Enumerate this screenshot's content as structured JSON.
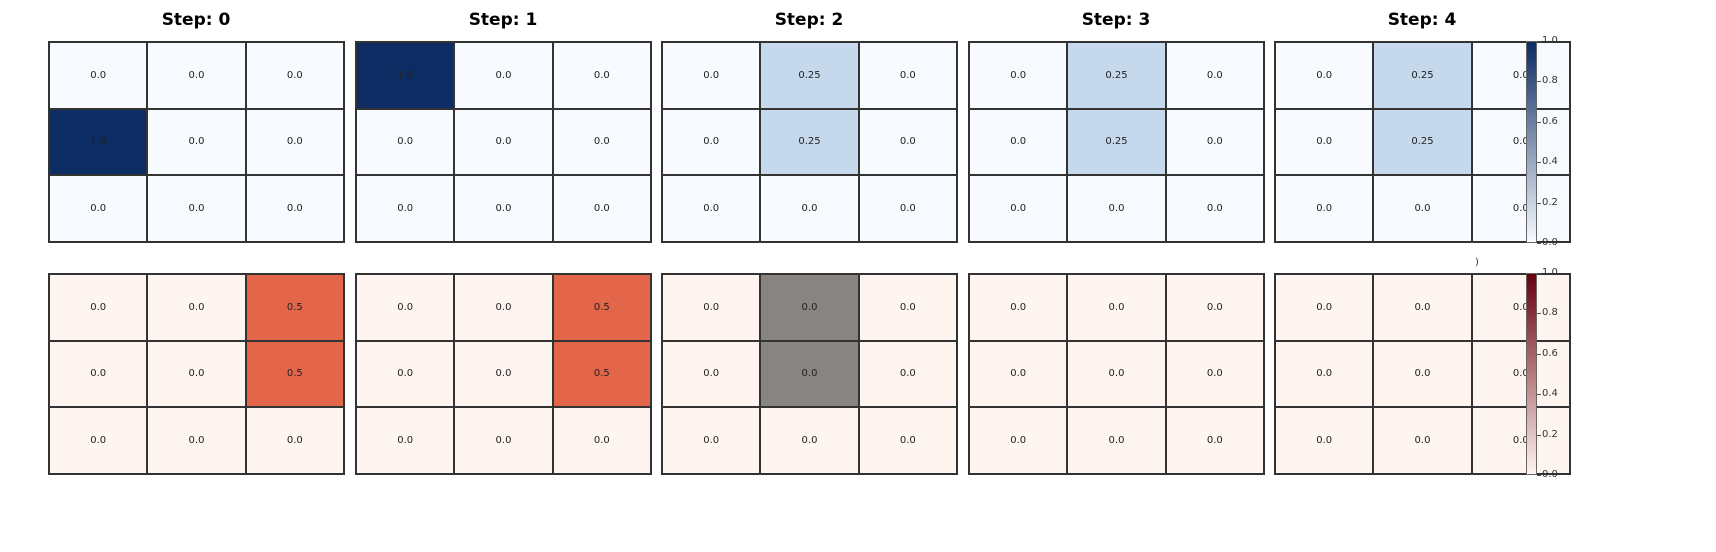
{
  "colors": {
    "top_low": "#f7fbff",
    "top_mid": "#c6d8ec",
    "top_high": "#0c2c63",
    "bottom_low": "#fff5f0",
    "bottom_mid": "#e3654a",
    "bottom_high": "#67000d",
    "masked": "#878481"
  },
  "chart_data": {
    "type": "heatmap",
    "steps": [
      {
        "title": "Step: 0",
        "top": [
          [
            "0.0",
            "0.0",
            "0.0"
          ],
          [
            "1.0",
            "0.0",
            "0.0"
          ],
          [
            "0.0",
            "0.0",
            "0.0"
          ]
        ],
        "bottom": [
          [
            "0.0",
            "0.0",
            "0.5"
          ],
          [
            "0.0",
            "0.0",
            "0.5"
          ],
          [
            "0.0",
            "0.0",
            "0.0"
          ]
        ]
      },
      {
        "title": "Step: 1",
        "top": [
          [
            "1.0",
            "0.0",
            "0.0"
          ],
          [
            "0.0",
            "0.0",
            "0.0"
          ],
          [
            "0.0",
            "0.0",
            "0.0"
          ]
        ],
        "bottom": [
          [
            "0.0",
            "0.0",
            "0.5"
          ],
          [
            "0.0",
            "0.0",
            "0.5"
          ],
          [
            "0.0",
            "0.0",
            "0.0"
          ]
        ]
      },
      {
        "title": "Step: 2",
        "top": [
          [
            "0.0",
            "0.25",
            "0.0"
          ],
          [
            "0.0",
            "0.25",
            "0.0"
          ],
          [
            "0.0",
            "0.0",
            "0.0"
          ]
        ],
        "bottom": [
          [
            "0.0",
            "0.0",
            "0.0"
          ],
          [
            "0.0",
            "0.0",
            "0.0"
          ],
          [
            "0.0",
            "0.0",
            "0.0"
          ]
        ],
        "bottom_masked": [
          [
            0,
            1
          ],
          [
            1,
            1
          ]
        ]
      },
      {
        "title": "Step: 3",
        "top": [
          [
            "0.0",
            "0.25",
            "0.0"
          ],
          [
            "0.0",
            "0.25",
            "0.0"
          ],
          [
            "0.0",
            "0.0",
            "0.0"
          ]
        ],
        "bottom": [
          [
            "0.0",
            "0.0",
            "0.0"
          ],
          [
            "0.0",
            "0.0",
            "0.0"
          ],
          [
            "0.0",
            "0.0",
            "0.0"
          ]
        ]
      },
      {
        "title": "Step: 4",
        "top": [
          [
            "0.0",
            "0.25",
            "0.0"
          ],
          [
            "0.0",
            "0.25",
            "0.0"
          ],
          [
            "0.0",
            "0.0",
            "0.0"
          ]
        ],
        "bottom": [
          [
            "0.0",
            "0.0",
            "0.0"
          ],
          [
            "0.0",
            "0.0",
            "0.0"
          ],
          [
            "0.0",
            "0.0",
            "0.0"
          ]
        ]
      }
    ],
    "colorbar_top": {
      "ticks": [
        "1.0",
        "0.8",
        "0.6",
        "0.4",
        "0.2",
        "0.0"
      ],
      "range": [
        0,
        1
      ],
      "colormap": "Blues"
    },
    "colorbar_bottom": {
      "ticks": [
        "1.0",
        "0.8",
        "0.6",
        "0.4",
        "0.2",
        "0.0"
      ],
      "range": [
        0,
        1
      ],
      "colormap": "Reds"
    },
    "stray_text": ")"
  }
}
